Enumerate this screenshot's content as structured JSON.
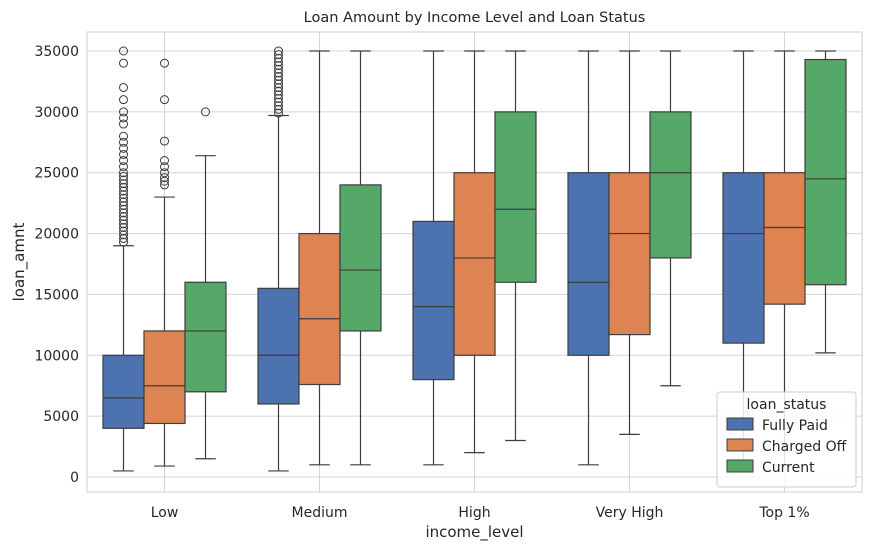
{
  "chart_data": {
    "type": "box",
    "title": "Loan Amount by Income Level and Loan Status",
    "xlabel": "income_level",
    "ylabel": "loan_amnt",
    "categories": [
      "Low",
      "Medium",
      "High",
      "Very High",
      "Top 1%"
    ],
    "ylim": [
      -1300,
      36500
    ],
    "yticks": [
      0,
      5000,
      10000,
      15000,
      20000,
      25000,
      30000,
      35000
    ],
    "grid": true,
    "legend": {
      "title": "loan_status",
      "placement": "lower-right"
    },
    "series": [
      {
        "name": "Fully Paid",
        "color": "#4c72b0",
        "boxes": [
          {
            "whisker_low": 500,
            "q1": 4000,
            "median": 6500,
            "q3": 10000,
            "whisker_high": 19000,
            "outliers": [
              19300,
              19600,
              19900,
              20200,
              20500,
              20800,
              21100,
              21400,
              21700,
              22000,
              22300,
              22600,
              22900,
              23200,
              23500,
              23800,
              24100,
              24400,
              24700,
              25000,
              25500,
              26000,
              26500,
              27000,
              27500,
              28000,
              29000,
              29500,
              30000,
              31000,
              32000,
              34000,
              35000
            ]
          },
          {
            "whisker_low": 500,
            "q1": 6000,
            "median": 10000,
            "q3": 15500,
            "whisker_high": 29700,
            "outliers": [
              29900,
              30200,
              30500,
              30800,
              31100,
              31400,
              31700,
              32000,
              32300,
              32600,
              32900,
              33200,
              33500,
              33800,
              34100,
              34400,
              34700,
              35000
            ]
          },
          {
            "whisker_low": 1000,
            "q1": 8000,
            "median": 14000,
            "q3": 21000,
            "whisker_high": 35000,
            "outliers": []
          },
          {
            "whisker_low": 1000,
            "q1": 10000,
            "median": 16000,
            "q3": 25000,
            "whisker_high": 35000,
            "outliers": []
          },
          {
            "whisker_low": 1000,
            "q1": 11000,
            "median": 20000,
            "q3": 25000,
            "whisker_high": 35000,
            "outliers": []
          }
        ]
      },
      {
        "name": "Charged Off",
        "color": "#dd8452",
        "boxes": [
          {
            "whisker_low": 900,
            "q1": 4400,
            "median": 7500,
            "q3": 12000,
            "whisker_high": 23000,
            "outliers": [
              24000,
              24300,
              24600,
              25000,
              25500,
              26000,
              27600,
              31000,
              34000
            ]
          },
          {
            "whisker_low": 1000,
            "q1": 7600,
            "median": 13000,
            "q3": 20000,
            "whisker_high": 35000,
            "outliers": []
          },
          {
            "whisker_low": 2000,
            "q1": 10000,
            "median": 18000,
            "q3": 25000,
            "whisker_high": 35000,
            "outliers": []
          },
          {
            "whisker_low": 3500,
            "q1": 11700,
            "median": 20000,
            "q3": 25000,
            "whisker_high": 35000,
            "outliers": []
          },
          {
            "whisker_low": 1000,
            "q1": 14200,
            "median": 20500,
            "q3": 25000,
            "whisker_high": 35000,
            "outliers": []
          }
        ]
      },
      {
        "name": "Current",
        "color": "#55a868",
        "boxes": [
          {
            "whisker_low": 1500,
            "q1": 7000,
            "median": 12000,
            "q3": 16000,
            "whisker_high": 26400,
            "outliers": [
              30000
            ]
          },
          {
            "whisker_low": 1000,
            "q1": 12000,
            "median": 17000,
            "q3": 24000,
            "whisker_high": 35000,
            "outliers": []
          },
          {
            "whisker_low": 3000,
            "q1": 16000,
            "median": 22000,
            "q3": 30000,
            "whisker_high": 35000,
            "outliers": []
          },
          {
            "whisker_low": 7500,
            "q1": 18000,
            "median": 25000,
            "q3": 30000,
            "whisker_high": 35000,
            "outliers": []
          },
          {
            "whisker_low": 10200,
            "q1": 15800,
            "median": 24500,
            "q3": 34300,
            "whisker_high": 35000,
            "outliers": []
          }
        ]
      }
    ]
  }
}
